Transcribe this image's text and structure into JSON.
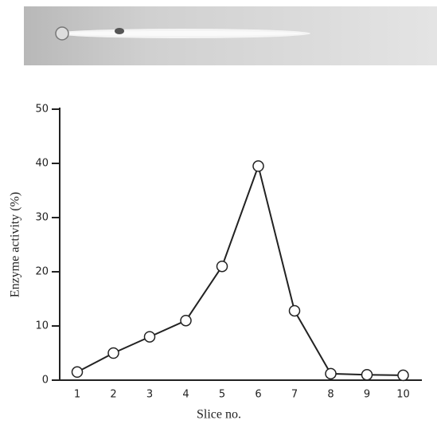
{
  "chart_data": {
    "type": "line",
    "x_label": "Slice no.",
    "y_label": "Enzyme activity (%)",
    "categories": [
      "1",
      "2",
      "3",
      "4",
      "5",
      "6",
      "7",
      "8",
      "9",
      "10"
    ],
    "values": [
      1.5,
      5,
      8,
      11,
      21,
      39.5,
      12.8,
      1.2,
      1.0,
      0.9
    ],
    "color": "#222222",
    "ylim": [
      0,
      50
    ],
    "yticks": [
      0,
      10,
      20,
      30,
      40,
      50
    ]
  }
}
